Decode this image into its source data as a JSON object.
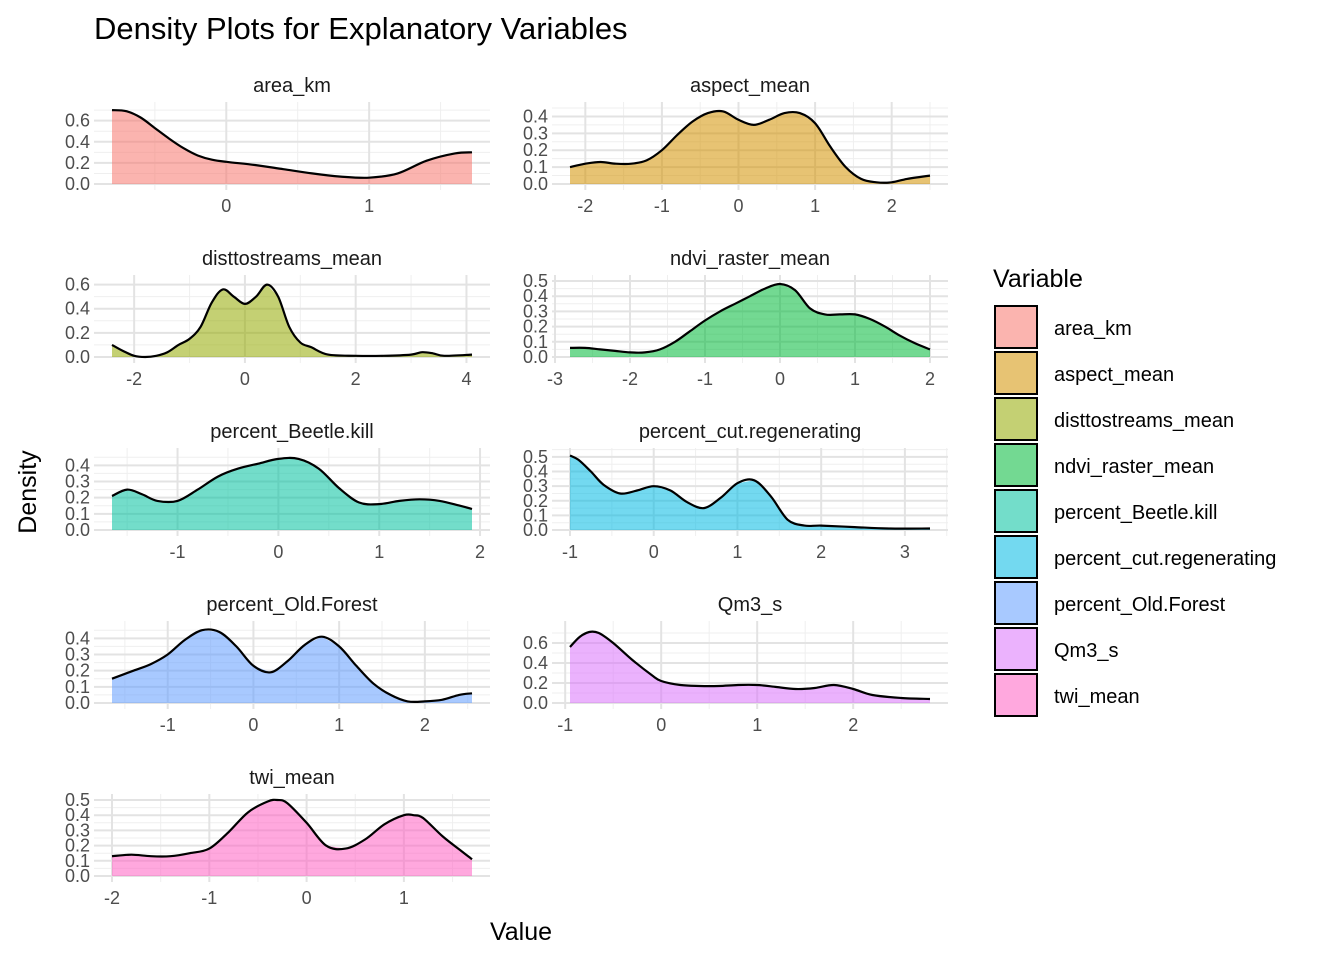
{
  "chart_data": {
    "type": "area",
    "title": "Density Plots for Explanatory Variables",
    "xlabel": "Value",
    "ylabel": "Density",
    "legend": {
      "title": "Variable",
      "placement": "right",
      "items": [
        {
          "label": "area_km",
          "color": "#F8766D"
        },
        {
          "label": "aspect_mean",
          "color": "#D39200"
        },
        {
          "label": "disttostreams_mean",
          "color": "#93AA00"
        },
        {
          "label": "ndvi_raster_mean",
          "color": "#00BA38"
        },
        {
          "label": "percent_Beetle.kill",
          "color": "#00C19F"
        },
        {
          "label": "percent_cut.regenerating",
          "color": "#00B9E3"
        },
        {
          "label": "percent_Old.Forest",
          "color": "#619CFF"
        },
        {
          "label": "Qm3_s",
          "color": "#DB72FB"
        },
        {
          "label": "twi_mean",
          "color": "#FF61C3"
        }
      ]
    },
    "grid": true,
    "panels": [
      {
        "name": "area_km",
        "color": "#F8766D",
        "xlim": [
          -0.8,
          1.72
        ],
        "xticks": [
          0,
          1
        ],
        "xtick_labels": [
          "0",
          "1"
        ],
        "ylim": [
          0,
          0.72
        ],
        "yticks": [
          0,
          0.2,
          0.4,
          0.6
        ],
        "ytick_labels": [
          "0.0",
          "0.2",
          "0.4",
          "0.6"
        ],
        "x": [
          -0.8,
          -0.7,
          -0.6,
          -0.5,
          -0.4,
          -0.3,
          -0.2,
          -0.1,
          0.0,
          0.2,
          0.4,
          0.6,
          0.8,
          1.0,
          1.2,
          1.4,
          1.6,
          1.72
        ],
        "y": [
          0.7,
          0.69,
          0.63,
          0.53,
          0.43,
          0.34,
          0.27,
          0.23,
          0.21,
          0.18,
          0.14,
          0.1,
          0.07,
          0.06,
          0.1,
          0.22,
          0.29,
          0.3
        ]
      },
      {
        "name": "aspect_mean",
        "color": "#D39200",
        "xlim": [
          -2.2,
          2.5
        ],
        "xticks": [
          -2,
          -1,
          0,
          1,
          2
        ],
        "xtick_labels": [
          "-2",
          "-1",
          "0",
          "1",
          "2"
        ],
        "ylim": [
          0,
          0.45
        ],
        "yticks": [
          0,
          0.1,
          0.2,
          0.3,
          0.4
        ],
        "ytick_labels": [
          "0.0",
          "0.1",
          "0.2",
          "0.3",
          "0.4"
        ],
        "x": [
          -2.2,
          -2.0,
          -1.8,
          -1.6,
          -1.4,
          -1.2,
          -1.0,
          -0.8,
          -0.6,
          -0.4,
          -0.2,
          0.0,
          0.2,
          0.4,
          0.6,
          0.8,
          1.0,
          1.2,
          1.4,
          1.6,
          1.8,
          2.0,
          2.2,
          2.5
        ],
        "y": [
          0.1,
          0.12,
          0.13,
          0.12,
          0.12,
          0.14,
          0.2,
          0.29,
          0.37,
          0.42,
          0.43,
          0.38,
          0.35,
          0.38,
          0.42,
          0.42,
          0.36,
          0.22,
          0.1,
          0.03,
          0.01,
          0.01,
          0.03,
          0.05
        ]
      },
      {
        "name": "disttostreams_mean",
        "color": "#93AA00",
        "xlim": [
          -2.4,
          4.1
        ],
        "xticks": [
          -2,
          0,
          2,
          4
        ],
        "xtick_labels": [
          "-2",
          "0",
          "2",
          "4"
        ],
        "ylim": [
          0,
          0.63
        ],
        "yticks": [
          0,
          0.2,
          0.4,
          0.6
        ],
        "ytick_labels": [
          "0.0",
          "0.2",
          "0.4",
          "0.6"
        ],
        "x": [
          -2.4,
          -2.2,
          -2.0,
          -1.8,
          -1.6,
          -1.4,
          -1.2,
          -1.0,
          -0.8,
          -0.6,
          -0.4,
          -0.2,
          0.0,
          0.2,
          0.4,
          0.6,
          0.8,
          1.0,
          1.2,
          1.5,
          2.0,
          2.5,
          3.0,
          3.2,
          3.4,
          3.6,
          4.1
        ],
        "y": [
          0.1,
          0.05,
          0.01,
          0.0,
          0.01,
          0.04,
          0.1,
          0.15,
          0.25,
          0.45,
          0.56,
          0.5,
          0.44,
          0.5,
          0.6,
          0.5,
          0.25,
          0.12,
          0.08,
          0.02,
          0.01,
          0.01,
          0.02,
          0.04,
          0.03,
          0.01,
          0.02
        ]
      },
      {
        "name": "ndvi_raster_mean",
        "color": "#00BA38",
        "xlim": [
          -2.8,
          2.0
        ],
        "xticks": [
          -3,
          -2,
          -1,
          0,
          1,
          2
        ],
        "xtick_labels": [
          "-3",
          "-2",
          "-1",
          "0",
          "1",
          "2"
        ],
        "ylim": [
          0,
          0.5
        ],
        "yticks": [
          0,
          0.1,
          0.2,
          0.3,
          0.4,
          0.5
        ],
        "ytick_labels": [
          "0.0",
          "0.1",
          "0.2",
          "0.3",
          "0.4",
          "0.5"
        ],
        "x": [
          -2.8,
          -2.6,
          -2.4,
          -2.2,
          -2.0,
          -1.8,
          -1.6,
          -1.4,
          -1.2,
          -1.0,
          -0.8,
          -0.6,
          -0.4,
          -0.2,
          0.0,
          0.2,
          0.4,
          0.6,
          0.8,
          1.0,
          1.2,
          1.4,
          1.6,
          1.8,
          2.0
        ],
        "y": [
          0.06,
          0.06,
          0.05,
          0.04,
          0.03,
          0.03,
          0.05,
          0.1,
          0.17,
          0.24,
          0.3,
          0.35,
          0.4,
          0.45,
          0.48,
          0.44,
          0.32,
          0.28,
          0.28,
          0.28,
          0.25,
          0.2,
          0.14,
          0.09,
          0.05
        ]
      },
      {
        "name": "percent_Beetle.kill",
        "color": "#00C19F",
        "xlim": [
          -1.65,
          1.92
        ],
        "xticks": [
          -1,
          0,
          1,
          2
        ],
        "xtick_labels": [
          "-1",
          "0",
          "1",
          "2"
        ],
        "ylim": [
          0,
          0.47
        ],
        "yticks": [
          0,
          0.1,
          0.2,
          0.3,
          0.4
        ],
        "ytick_labels": [
          "0.0",
          "0.1",
          "0.2",
          "0.3",
          "0.4"
        ],
        "x": [
          -1.65,
          -1.5,
          -1.35,
          -1.2,
          -1.0,
          -0.8,
          -0.6,
          -0.4,
          -0.2,
          0.0,
          0.2,
          0.4,
          0.6,
          0.8,
          1.0,
          1.2,
          1.4,
          1.6,
          1.8,
          1.92
        ],
        "y": [
          0.21,
          0.25,
          0.22,
          0.18,
          0.18,
          0.25,
          0.33,
          0.38,
          0.41,
          0.44,
          0.44,
          0.38,
          0.26,
          0.17,
          0.16,
          0.18,
          0.19,
          0.18,
          0.15,
          0.13
        ]
      },
      {
        "name": "percent_cut.regenerating",
        "color": "#00B9E3",
        "xlim": [
          -1.0,
          3.3
        ],
        "xticks": [
          -1,
          0,
          1,
          2,
          3
        ],
        "xtick_labels": [
          "-1",
          "0",
          "1",
          "2",
          "3"
        ],
        "ylim": [
          0,
          0.52
        ],
        "yticks": [
          0,
          0.1,
          0.2,
          0.3,
          0.4,
          0.5
        ],
        "ytick_labels": [
          "0.0",
          "0.1",
          "0.2",
          "0.3",
          "0.4",
          "0.5"
        ],
        "x": [
          -1.0,
          -0.9,
          -0.75,
          -0.6,
          -0.4,
          -0.2,
          0.0,
          0.2,
          0.4,
          0.6,
          0.8,
          1.0,
          1.2,
          1.4,
          1.6,
          1.8,
          2.0,
          2.4,
          2.8,
          3.3
        ],
        "y": [
          0.51,
          0.48,
          0.4,
          0.31,
          0.25,
          0.27,
          0.3,
          0.27,
          0.19,
          0.15,
          0.22,
          0.32,
          0.34,
          0.23,
          0.07,
          0.03,
          0.03,
          0.02,
          0.01,
          0.01
        ]
      },
      {
        "name": "percent_Old.Forest",
        "color": "#619CFF",
        "xlim": [
          -1.65,
          2.55
        ],
        "xticks": [
          -1,
          0,
          1,
          2
        ],
        "xtick_labels": [
          "-1",
          "0",
          "1",
          "2"
        ],
        "ylim": [
          0,
          0.47
        ],
        "yticks": [
          0,
          0.1,
          0.2,
          0.3,
          0.4
        ],
        "ytick_labels": [
          "0.0",
          "0.1",
          "0.2",
          "0.3",
          "0.4"
        ],
        "x": [
          -1.65,
          -1.4,
          -1.2,
          -1.0,
          -0.8,
          -0.6,
          -0.4,
          -0.2,
          0.0,
          0.2,
          0.4,
          0.6,
          0.8,
          1.0,
          1.2,
          1.4,
          1.6,
          1.8,
          2.0,
          2.2,
          2.4,
          2.55
        ],
        "y": [
          0.15,
          0.2,
          0.24,
          0.3,
          0.39,
          0.45,
          0.44,
          0.35,
          0.23,
          0.19,
          0.26,
          0.36,
          0.41,
          0.35,
          0.23,
          0.12,
          0.05,
          0.01,
          0.01,
          0.02,
          0.05,
          0.06
        ]
      },
      {
        "name": "Qm3_s",
        "color": "#DB72FB",
        "xlim": [
          -0.95,
          2.8
        ],
        "xticks": [
          -1,
          0,
          1,
          2
        ],
        "xtick_labels": [
          "-1",
          "0",
          "1",
          "2"
        ],
        "ylim": [
          0,
          0.76
        ],
        "yticks": [
          0,
          0.2,
          0.4,
          0.6
        ],
        "ytick_labels": [
          "0.0",
          "0.2",
          "0.4",
          "0.6"
        ],
        "x": [
          -0.95,
          -0.85,
          -0.75,
          -0.65,
          -0.5,
          -0.3,
          -0.1,
          0.0,
          0.2,
          0.4,
          0.6,
          0.8,
          1.0,
          1.2,
          1.4,
          1.6,
          1.8,
          2.0,
          2.2,
          2.5,
          2.8
        ],
        "y": [
          0.56,
          0.66,
          0.71,
          0.7,
          0.6,
          0.43,
          0.28,
          0.22,
          0.18,
          0.17,
          0.17,
          0.18,
          0.18,
          0.16,
          0.14,
          0.15,
          0.18,
          0.14,
          0.08,
          0.05,
          0.04
        ]
      },
      {
        "name": "twi_mean",
        "color": "#FF61C3",
        "xlim": [
          -2.0,
          1.7
        ],
        "xticks": [
          -2,
          -1,
          0,
          1
        ],
        "xtick_labels": [
          "-2",
          "-1",
          "0",
          "1"
        ],
        "ylim": [
          0,
          0.5
        ],
        "yticks": [
          0,
          0.1,
          0.2,
          0.3,
          0.4,
          0.5
        ],
        "ytick_labels": [
          "0.0",
          "0.1",
          "0.2",
          "0.3",
          "0.4",
          "0.5"
        ],
        "x": [
          -2.0,
          -1.8,
          -1.6,
          -1.4,
          -1.2,
          -1.0,
          -0.8,
          -0.6,
          -0.4,
          -0.3,
          -0.2,
          0.0,
          0.2,
          0.4,
          0.6,
          0.8,
          1.0,
          1.1,
          1.2,
          1.4,
          1.6,
          1.7
        ],
        "y": [
          0.13,
          0.14,
          0.13,
          0.13,
          0.15,
          0.18,
          0.29,
          0.42,
          0.49,
          0.5,
          0.48,
          0.35,
          0.2,
          0.18,
          0.24,
          0.34,
          0.4,
          0.4,
          0.38,
          0.26,
          0.16,
          0.11
        ]
      }
    ]
  }
}
